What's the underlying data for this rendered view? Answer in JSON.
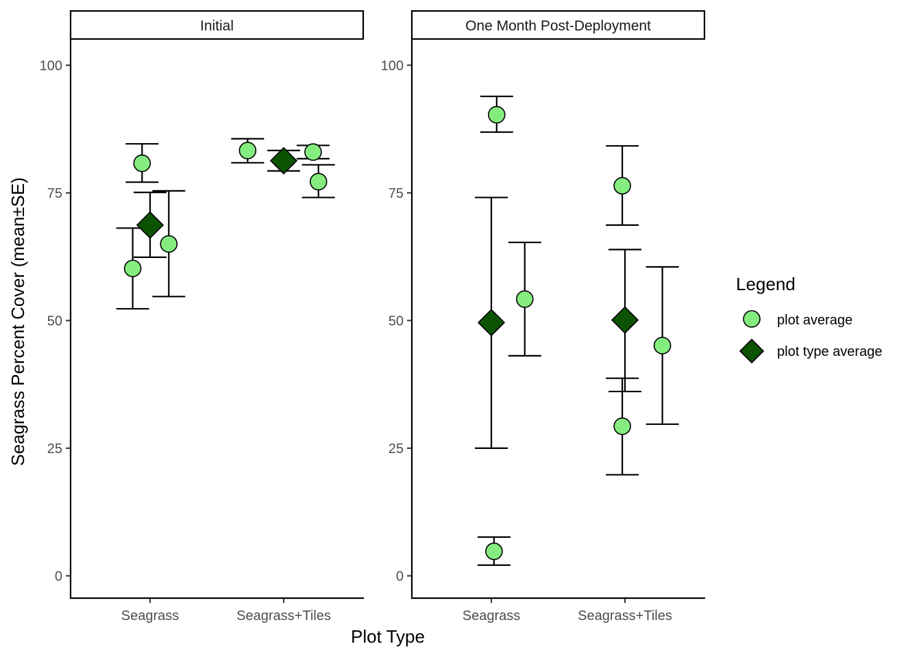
{
  "chart_data": {
    "type": "scatter",
    "ylabel": "Seagrass Percent Cover (mean±SE)",
    "xlabel": "Plot Type",
    "ylim": [
      -4.5,
      105
    ],
    "yticks": [
      0,
      25,
      50,
      75,
      100
    ],
    "categories": [
      "Seagrass",
      "Seagrass+Tiles"
    ],
    "legend": {
      "title": "Legend",
      "position": "right",
      "entries": [
        {
          "label": "plot average",
          "shape": "circle",
          "fill": "#85ed7f"
        },
        {
          "label": "plot type average",
          "shape": "diamond",
          "fill": "#0b5300"
        }
      ]
    },
    "colors": {
      "plot_average": "#85ed7f",
      "plot_type_average": "#0b5300",
      "outline": "#000000"
    },
    "panels": [
      {
        "strip": "Initial",
        "plot_average": [
          {
            "category": "Seagrass",
            "offset": -0.13,
            "mean": 60.2,
            "se_low": 52.3,
            "se_high": 68.1
          },
          {
            "category": "Seagrass",
            "offset": -0.06,
            "mean": 80.8,
            "se_low": 77.1,
            "se_high": 84.6
          },
          {
            "category": "Seagrass",
            "offset": 0.14,
            "mean": 65.0,
            "se_low": 54.7,
            "se_high": 75.4
          },
          {
            "category": "Seagrass+Tiles",
            "offset": -0.27,
            "mean": 83.3,
            "se_low": 80.9,
            "se_high": 85.6
          },
          {
            "category": "Seagrass+Tiles",
            "offset": 0.22,
            "mean": 83.0,
            "se_low": 81.7,
            "se_high": 84.3
          },
          {
            "category": "Seagrass+Tiles",
            "offset": 0.26,
            "mean": 77.2,
            "se_low": 74.1,
            "se_high": 80.5
          }
        ],
        "plot_type_average": [
          {
            "category": "Seagrass",
            "offset": 0.0,
            "mean": 68.7,
            "se_low": 62.4,
            "se_high": 75.1
          },
          {
            "category": "Seagrass+Tiles",
            "offset": 0.0,
            "mean": 81.3,
            "se_low": 79.3,
            "se_high": 83.3
          }
        ]
      },
      {
        "strip": "One Month Post-Deployment",
        "plot_average": [
          {
            "category": "Seagrass",
            "offset": 0.04,
            "mean": 90.3,
            "se_low": 86.9,
            "se_high": 93.9
          },
          {
            "category": "Seagrass",
            "offset": 0.02,
            "mean": 4.8,
            "se_low": 2.1,
            "se_high": 7.6
          },
          {
            "category": "Seagrass",
            "offset": 0.25,
            "mean": 54.2,
            "se_low": 43.1,
            "se_high": 65.3
          },
          {
            "category": "Seagrass+Tiles",
            "offset": -0.02,
            "mean": 76.4,
            "se_low": 68.7,
            "se_high": 84.2
          },
          {
            "category": "Seagrass+Tiles",
            "offset": -0.02,
            "mean": 29.3,
            "se_low": 19.8,
            "se_high": 38.7
          },
          {
            "category": "Seagrass+Tiles",
            "offset": 0.28,
            "mean": 45.1,
            "se_low": 29.7,
            "se_high": 60.5
          }
        ],
        "plot_type_average": [
          {
            "category": "Seagrass",
            "offset": 0.0,
            "mean": 49.6,
            "se_low": 25.0,
            "se_high": 74.1
          },
          {
            "category": "Seagrass+Tiles",
            "offset": 0.0,
            "mean": 50.1,
            "se_low": 36.1,
            "se_high": 63.9
          }
        ]
      }
    ]
  }
}
